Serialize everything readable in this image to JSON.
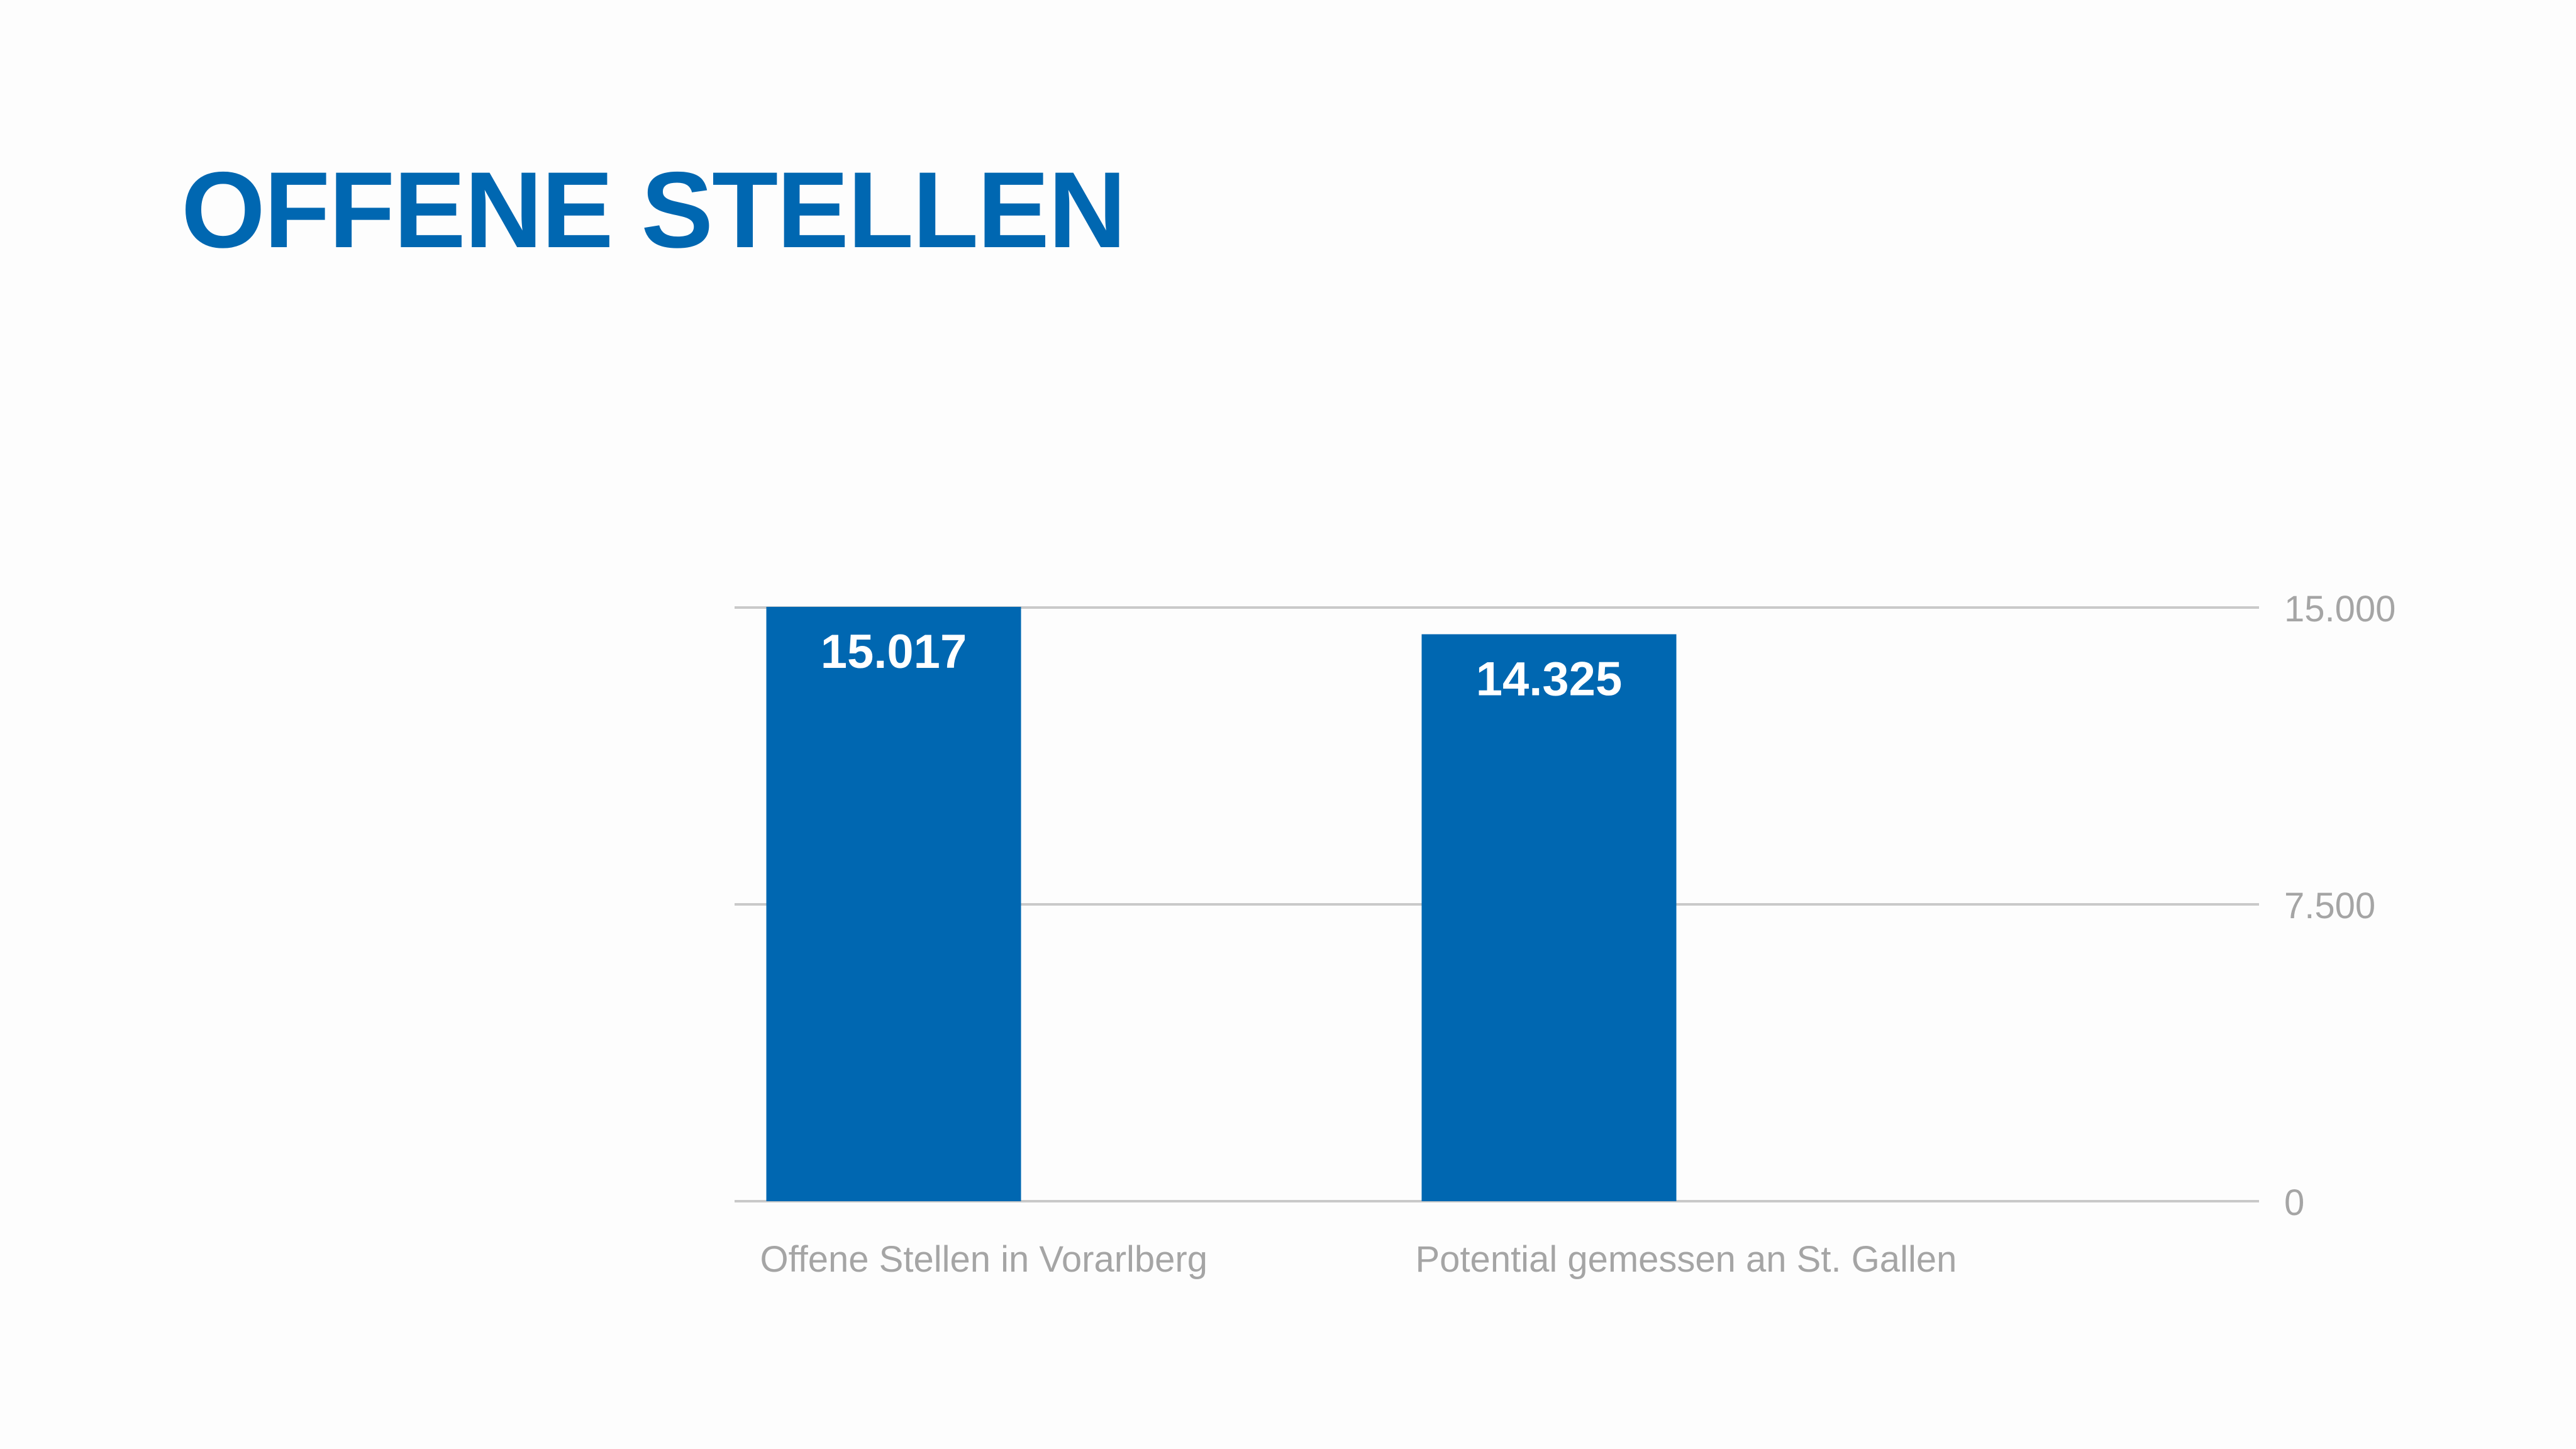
{
  "slide": {
    "title": "OFFENE STELLEN"
  },
  "colors": {
    "title": "#0067b1",
    "bar": "#0067b1",
    "bar_label": "#ffffff",
    "gridline": "#c9c9c9",
    "axis_text": "#a5a5a5",
    "background": "#fdfdfd"
  },
  "chart_data": {
    "type": "bar",
    "title": "",
    "xlabel": "",
    "ylabel": "",
    "categories": [
      "Offene Stellen in Vorarlberg",
      "Potential gemessen an St. Gallen"
    ],
    "values": [
      15017,
      14325
    ],
    "value_labels": [
      "15.017",
      "14.325"
    ],
    "ylim": [
      0,
      15000
    ],
    "yticks": [
      0,
      7500,
      15000
    ],
    "ytick_labels": [
      "0",
      "7.500",
      "15.000"
    ],
    "y_axis_position": "right",
    "grid": true,
    "legend": "none"
  }
}
